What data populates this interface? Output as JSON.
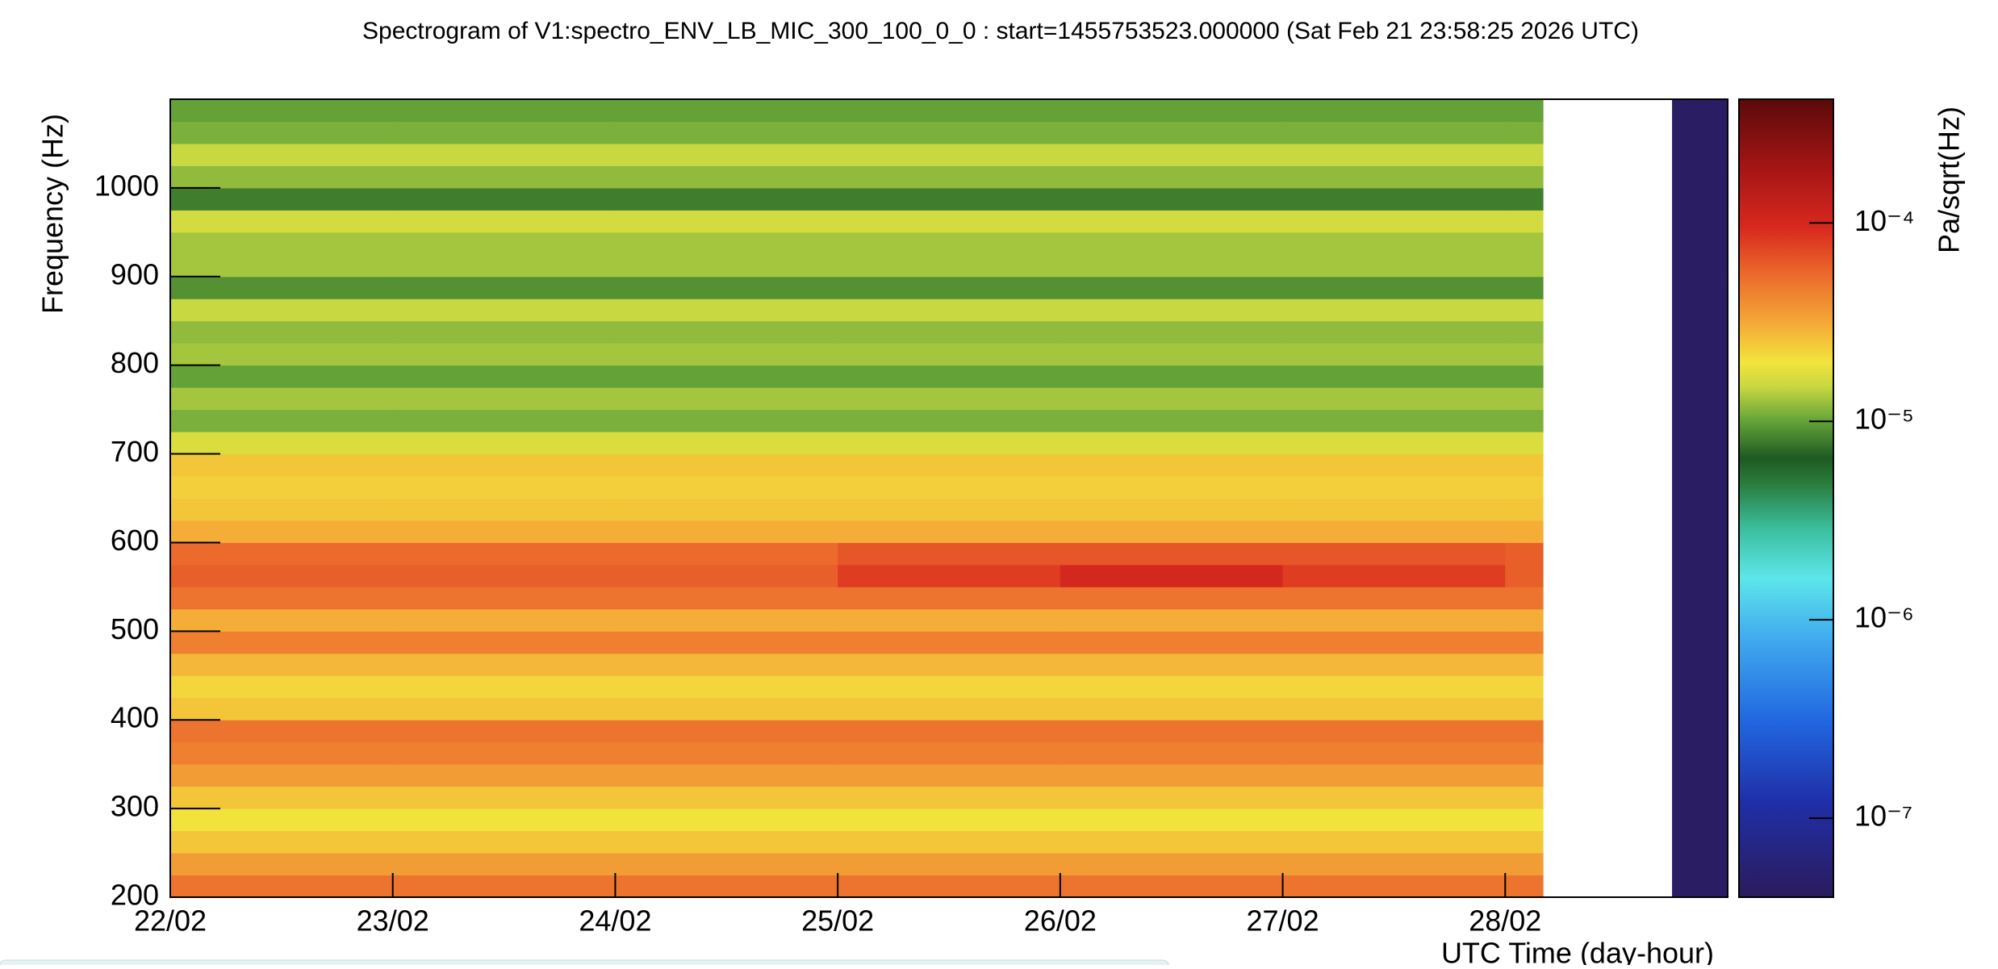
{
  "chart_data": {
    "type": "heatmap",
    "title": "Spectrogram of V1:spectro_ENV_LB_MIC_300_100_0_0 : start=1455753523.000000 (Sat Feb 21 23:58:25 2026 UTC)",
    "x_label": "UTC Time (day-hour)",
    "y_label": "Frequency (Hz)",
    "z_label": "Pa/sqrt(Hz)",
    "xlim": [
      0,
      7
    ],
    "xticks": [
      {
        "value": 0,
        "label": "22/02"
      },
      {
        "value": 1,
        "label": "23/02"
      },
      {
        "value": 2,
        "label": "24/02"
      },
      {
        "value": 3,
        "label": "25/02"
      },
      {
        "value": 4,
        "label": "26/02"
      },
      {
        "value": 5,
        "label": "27/02"
      },
      {
        "value": 6,
        "label": "28/02"
      }
    ],
    "ylim": [
      200,
      1100
    ],
    "yticks": [
      200,
      300,
      400,
      500,
      600,
      700,
      800,
      900,
      1000
    ],
    "zlim": [
      4e-08,
      0.00042
    ],
    "zscale": "log",
    "zticks": [
      {
        "value": 0.0001,
        "label": "10⁻⁴"
      },
      {
        "value": 1e-05,
        "label": "10⁻⁵"
      },
      {
        "value": 1e-06,
        "label": "10⁻⁶"
      },
      {
        "value": 1e-07,
        "label": "10⁻⁷"
      }
    ],
    "colorscale": [
      [
        0,
        "#2b1b5c"
      ],
      [
        0.12,
        "#1f2fa8"
      ],
      [
        0.22,
        "#2166e0"
      ],
      [
        0.32,
        "#3fa8ee"
      ],
      [
        0.4,
        "#5de6ea"
      ],
      [
        0.46,
        "#3cc0a0"
      ],
      [
        0.52,
        "#2a7a3a"
      ],
      [
        0.55,
        "#1e5a22"
      ],
      [
        0.6,
        "#6aa83a"
      ],
      [
        0.64,
        "#c8d840"
      ],
      [
        0.67,
        "#f2e43c"
      ],
      [
        0.72,
        "#f4a838"
      ],
      [
        0.78,
        "#ec6a2c"
      ],
      [
        0.84,
        "#d8281e"
      ],
      [
        0.92,
        "#a01414"
      ],
      [
        1,
        "#5a0a0a"
      ]
    ],
    "x_edges": [
      0,
      1,
      2,
      3,
      4,
      5,
      6,
      6.17,
      6.75,
      7
    ],
    "y_edges": [
      200,
      225,
      250,
      275,
      300,
      325,
      350,
      375,
      400,
      425,
      450,
      475,
      500,
      525,
      550,
      575,
      600,
      625,
      650,
      675,
      700,
      725,
      750,
      775,
      800,
      825,
      850,
      875,
      900,
      925,
      950,
      975,
      1000,
      1025,
      1050,
      1075,
      1100
    ],
    "values": [
      [
        5e-05,
        5e-05,
        5e-05,
        5e-05,
        5e-05,
        5e-05,
        5e-05,
        null,
        4.5e-08
      ],
      [
        3.5e-05,
        3.5e-05,
        3.5e-05,
        3.5e-05,
        3.5e-05,
        3.5e-05,
        3.5e-05,
        null,
        4.5e-08
      ],
      [
        2.5e-05,
        2.5e-05,
        2.5e-05,
        2.5e-05,
        2.5e-05,
        2.5e-05,
        2.5e-05,
        null,
        4.5e-08
      ],
      [
        2e-05,
        2e-05,
        2e-05,
        2e-05,
        2e-05,
        2e-05,
        2e-05,
        null,
        4.5e-08
      ],
      [
        2.5e-05,
        2.5e-05,
        2.5e-05,
        2.5e-05,
        2.5e-05,
        2.5e-05,
        2.5e-05,
        null,
        4.5e-08
      ],
      [
        3.5e-05,
        3.5e-05,
        3.5e-05,
        3.5e-05,
        3.5e-05,
        3.5e-05,
        3.5e-05,
        null,
        4.5e-08
      ],
      [
        4.5e-05,
        4.5e-05,
        4.5e-05,
        4.5e-05,
        4.5e-05,
        4.5e-05,
        4.5e-05,
        null,
        4.5e-08
      ],
      [
        5e-05,
        5e-05,
        5e-05,
        5e-05,
        5e-05,
        5e-05,
        5e-05,
        null,
        4.5e-08
      ],
      [
        2.5e-05,
        2.5e-05,
        2.5e-05,
        2.5e-05,
        2.5e-05,
        2.5e-05,
        2.5e-05,
        null,
        4.5e-08
      ],
      [
        2.2e-05,
        2.2e-05,
        2.2e-05,
        2.2e-05,
        2.2e-05,
        2.2e-05,
        2.2e-05,
        null,
        4.5e-08
      ],
      [
        2.8e-05,
        2.8e-05,
        2.8e-05,
        2.8e-05,
        2.8e-05,
        2.8e-05,
        2.8e-05,
        null,
        4.5e-08
      ],
      [
        4.5e-05,
        4.5e-05,
        4.5e-05,
        4.5e-05,
        4.5e-05,
        4.5e-05,
        4.5e-05,
        null,
        4.5e-08
      ],
      [
        3e-05,
        3e-05,
        3e-05,
        3e-05,
        3e-05,
        3e-05,
        3e-05,
        null,
        4.5e-08
      ],
      [
        5e-05,
        5e-05,
        5e-05,
        5e-05,
        5e-05,
        5e-05,
        5e-05,
        null,
        4.5e-08
      ],
      [
        6e-05,
        6e-05,
        6e-05,
        8e-05,
        0.0001,
        8e-05,
        6e-05,
        null,
        4.5e-08
      ],
      [
        5.5e-05,
        5.5e-05,
        5.5e-05,
        6.5e-05,
        6.5e-05,
        6.5e-05,
        6e-05,
        null,
        4.5e-08
      ],
      [
        3e-05,
        3e-05,
        3e-05,
        3e-05,
        3e-05,
        3e-05,
        3e-05,
        null,
        4.5e-08
      ],
      [
        2.5e-05,
        2.5e-05,
        2.5e-05,
        2.5e-05,
        2.5e-05,
        2.5e-05,
        2.5e-05,
        null,
        4.5e-08
      ],
      [
        2.3e-05,
        2.3e-05,
        2.3e-05,
        2.3e-05,
        2.3e-05,
        2.3e-05,
        2.3e-05,
        null,
        4.5e-08
      ],
      [
        2.5e-05,
        2.5e-05,
        2.5e-05,
        2.5e-05,
        2.5e-05,
        2.5e-05,
        2.5e-05,
        null,
        4.5e-08
      ],
      [
        1.7e-05,
        1.7e-05,
        1.7e-05,
        1.7e-05,
        1.7e-05,
        1.7e-05,
        1.7e-05,
        null,
        4.5e-08
      ],
      [
        1.1e-05,
        1.1e-05,
        1.1e-05,
        1.1e-05,
        1.1e-05,
        1.1e-05,
        1.1e-05,
        null,
        4.5e-08
      ],
      [
        1.3e-05,
        1.3e-05,
        1.3e-05,
        1.3e-05,
        1.3e-05,
        1.3e-05,
        1.3e-05,
        null,
        4.5e-08
      ],
      [
        1e-05,
        1e-05,
        1e-05,
        1e-05,
        1e-05,
        1e-05,
        1e-05,
        null,
        4.5e-08
      ],
      [
        1.3e-05,
        1.3e-05,
        1.3e-05,
        1.3e-05,
        1.3e-05,
        1.3e-05,
        1.3e-05,
        null,
        4.5e-08
      ],
      [
        1.2e-05,
        1.2e-05,
        1.2e-05,
        1.2e-05,
        1.2e-05,
        1.2e-05,
        1.2e-05,
        null,
        4.5e-08
      ],
      [
        1.5e-05,
        1.5e-05,
        1.5e-05,
        1.5e-05,
        1.5e-05,
        1.5e-05,
        1.5e-05,
        null,
        4.5e-08
      ],
      [
        9e-06,
        9e-06,
        9e-06,
        9e-06,
        9e-06,
        9e-06,
        9e-06,
        null,
        4.5e-08
      ],
      [
        1.3e-05,
        1.3e-05,
        1.3e-05,
        1.3e-05,
        1.3e-05,
        1.3e-05,
        1.3e-05,
        null,
        4.5e-08
      ],
      [
        1.3e-05,
        1.3e-05,
        1.3e-05,
        1.3e-05,
        1.3e-05,
        1.3e-05,
        1.3e-05,
        null,
        4.5e-08
      ],
      [
        1.6e-05,
        1.6e-05,
        1.6e-05,
        1.6e-05,
        1.6e-05,
        1.6e-05,
        1.6e-05,
        null,
        4.5e-08
      ],
      [
        8e-06,
        8e-06,
        8e-06,
        8e-06,
        8e-06,
        8e-06,
        8e-06,
        null,
        4.5e-08
      ],
      [
        1.2e-05,
        1.2e-05,
        1.2e-05,
        1.2e-05,
        1.2e-05,
        1.2e-05,
        1.2e-05,
        null,
        4.5e-08
      ],
      [
        1.5e-05,
        1.5e-05,
        1.5e-05,
        1.5e-05,
        1.5e-05,
        1.5e-05,
        1.5e-05,
        null,
        4.5e-08
      ],
      [
        1.1e-05,
        1.1e-05,
        1.1e-05,
        1.1e-05,
        1.1e-05,
        1.1e-05,
        1.1e-05,
        null,
        4.5e-08
      ],
      [
        1e-05,
        1e-05,
        1e-05,
        1e-05,
        1e-05,
        1e-05,
        1e-05,
        null,
        4.5e-08
      ]
    ]
  }
}
